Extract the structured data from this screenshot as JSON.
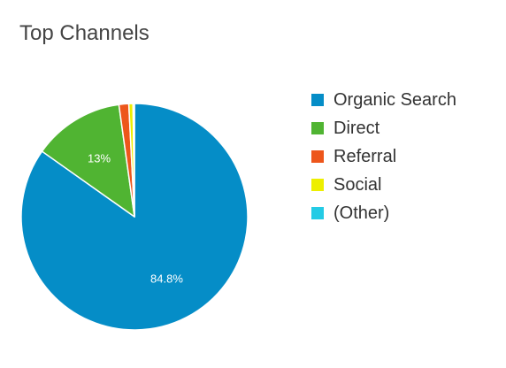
{
  "chart_data": {
    "type": "pie",
    "title": "Top Channels",
    "categories": [
      "Organic Search",
      "Direct",
      "Referral",
      "Social",
      "(Other)"
    ],
    "values": [
      84.8,
      13.0,
      1.4,
      0.6,
      0.2
    ],
    "data_labels": [
      "84.8%",
      "13%",
      "",
      "",
      ""
    ],
    "colors": [
      "#058dc7",
      "#50b432",
      "#ed561b",
      "#edef00",
      "#24cbe5"
    ],
    "legend_position": "right",
    "start": "12 o'clock",
    "direction": "clockwise"
  }
}
